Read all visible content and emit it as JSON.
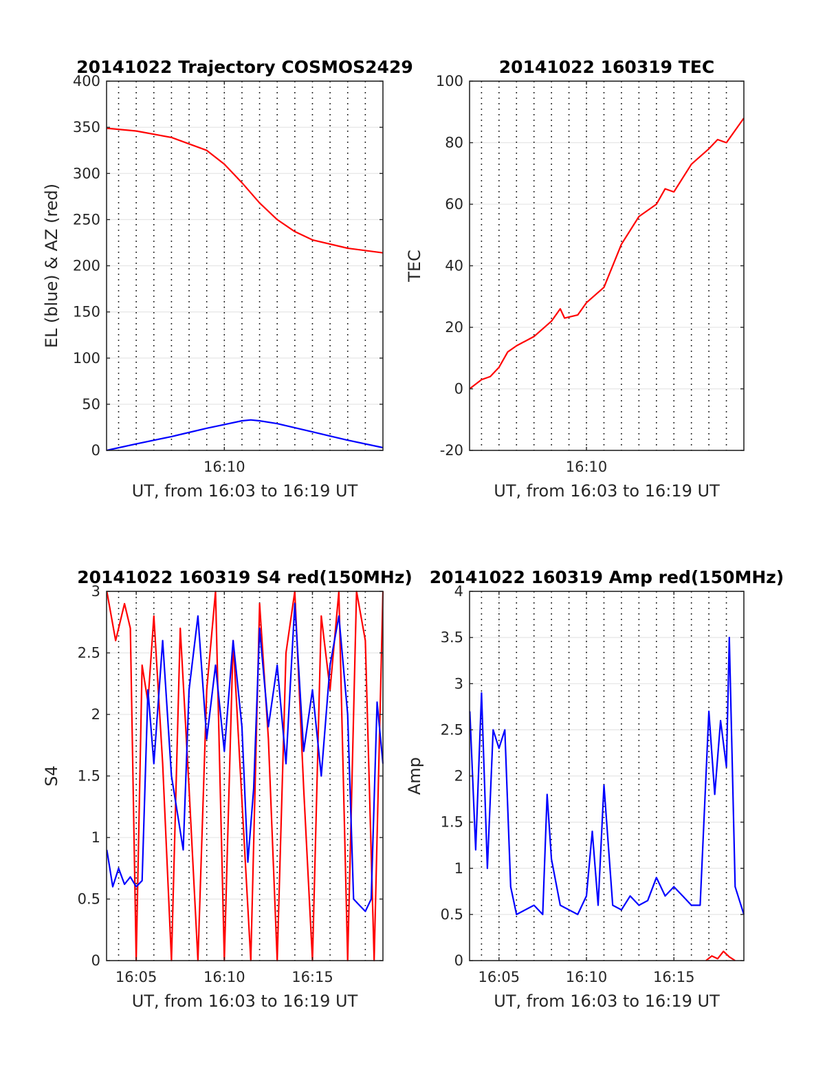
{
  "figure": {
    "background": "#ffffff"
  },
  "chart_data": [
    {
      "type": "line",
      "title": "20141022 Trajectory COSMOS2429",
      "xlabel": "UT, from 16:03 to 16:19 UT",
      "ylabel": "EL (blue) & AZ (red)",
      "xlim": [
        "16:03:19",
        "16:19:00"
      ],
      "ylim": [
        0,
        400
      ],
      "xticks": [
        {
          "value": "16:10",
          "label": "16:10"
        }
      ],
      "yticks": [
        0,
        50,
        100,
        150,
        200,
        250,
        300,
        350,
        400
      ],
      "ytick_labels": [
        "0",
        "50",
        "100",
        "150",
        "200",
        "250",
        "300",
        "350",
        "400"
      ],
      "grid": true,
      "dotted_time_grid_minutes": [
        4,
        5,
        6,
        7,
        8,
        9,
        10,
        11,
        12,
        13,
        14,
        15,
        16,
        17,
        18
      ],
      "series": [
        {
          "color": "#ff0000",
          "x": [
            "16:03:19",
            "16:05:00",
            "16:07:00",
            "16:09:00",
            "16:10:00",
            "16:11:00",
            "16:12:00",
            "16:13:00",
            "16:14:00",
            "16:15:00",
            "16:17:00",
            "16:19:00"
          ],
          "values": [
            349,
            346,
            339,
            325,
            310,
            290,
            268,
            250,
            237,
            228,
            219,
            214
          ]
        },
        {
          "color": "#0000ff",
          "x": [
            "16:03:19",
            "16:05:00",
            "16:07:00",
            "16:09:00",
            "16:10:00",
            "16:11:00",
            "16:11:30",
            "16:12:00",
            "16:13:00",
            "16:15:00",
            "16:17:00",
            "16:19:00"
          ],
          "values": [
            0,
            7,
            15,
            24,
            28,
            32,
            33,
            32,
            29,
            20,
            11,
            3
          ]
        }
      ]
    },
    {
      "type": "line",
      "title": "20141022 160319 TEC",
      "xlabel": "UT, from 16:03 to 16:19 UT",
      "ylabel": "TEC",
      "xlim": [
        "16:03:19",
        "16:19:00"
      ],
      "ylim": [
        -20,
        100
      ],
      "xticks": [
        {
          "value": "16:10",
          "label": "16:10"
        }
      ],
      "yticks": [
        -20,
        0,
        20,
        40,
        60,
        80,
        100
      ],
      "ytick_labels": [
        "-20",
        "0",
        "20",
        "40",
        "60",
        "80",
        "100"
      ],
      "grid": true,
      "dotted_time_grid_minutes": [
        4,
        5,
        6,
        7,
        8,
        9,
        10,
        11,
        12,
        13,
        14,
        15,
        16,
        17,
        18
      ],
      "series": [
        {
          "color": "#ff0000",
          "x": [
            "16:03:19",
            "16:04:00",
            "16:04:30",
            "16:05:00",
            "16:05:30",
            "16:06:00",
            "16:07:00",
            "16:08:00",
            "16:08:30",
            "16:08:45",
            "16:09:30",
            "16:10:00",
            "16:11:00",
            "16:12:00",
            "16:13:00",
            "16:14:00",
            "16:14:30",
            "16:15:00",
            "16:16:00",
            "16:17:00",
            "16:17:30",
            "16:18:00",
            "16:18:30",
            "16:19:00"
          ],
          "values": [
            0,
            3,
            4,
            7,
            12,
            14,
            17,
            22,
            26,
            23,
            24,
            28,
            33,
            47,
            56,
            60,
            65,
            64,
            73,
            78,
            81,
            80,
            84,
            88
          ]
        }
      ]
    },
    {
      "type": "line",
      "title": "20141022 160319 S4 red(150MHz)",
      "xlabel": "UT, from 16:03 to 16:19 UT",
      "ylabel": "S4",
      "xlim": [
        "16:03:19",
        "16:19:00"
      ],
      "ylim": [
        0,
        3
      ],
      "xticks": [
        {
          "value": "16:05",
          "label": "16:05"
        },
        {
          "value": "16:10",
          "label": "16:10"
        },
        {
          "value": "16:15",
          "label": "16:15"
        }
      ],
      "yticks": [
        0,
        0.5,
        1,
        1.5,
        2,
        2.5,
        3
      ],
      "ytick_labels": [
        "0",
        "0.5",
        "1",
        "1.5",
        "2",
        "2.5",
        "3"
      ],
      "grid": true,
      "dotted_time_grid_minutes": [
        4,
        5,
        6,
        7,
        8,
        9,
        10,
        11,
        12,
        13,
        14,
        15,
        16,
        17,
        18
      ],
      "series": [
        {
          "color": "#ff0000",
          "x": [
            "16:03:20",
            "16:03:50",
            "16:04:20",
            "16:04:40",
            "16:05:00",
            "16:05:20",
            "16:05:40",
            "16:06:00",
            "16:06:30",
            "16:07:00",
            "16:07:30",
            "16:08:00",
            "16:08:30",
            "16:09:00",
            "16:09:30",
            "16:10:00",
            "16:10:30",
            "16:11:00",
            "16:11:30",
            "16:12:00",
            "16:12:30",
            "16:13:00",
            "16:13:30",
            "16:14:00",
            "16:14:30",
            "16:15:00",
            "16:15:30",
            "16:16:00",
            "16:16:30",
            "16:17:00",
            "16:17:30",
            "16:18:00",
            "16:18:30",
            "16:19:00"
          ],
          "values": [
            3.0,
            2.6,
            2.9,
            2.7,
            0.0,
            2.4,
            2.1,
            2.8,
            1.6,
            0.0,
            2.7,
            1.4,
            0.0,
            2.2,
            3.0,
            0.0,
            2.6,
            1.3,
            0.0,
            2.9,
            1.8,
            0.0,
            2.5,
            3.0,
            1.4,
            0.0,
            2.8,
            2.2,
            3.0,
            0.0,
            3.0,
            2.6,
            0.0,
            3.0
          ]
        },
        {
          "color": "#0000ff",
          "x": [
            "16:03:20",
            "16:03:40",
            "16:04:00",
            "16:04:20",
            "16:04:40",
            "16:05:00",
            "16:05:20",
            "16:05:40",
            "16:06:00",
            "16:06:30",
            "16:07:00",
            "16:07:20",
            "16:07:40",
            "16:08:00",
            "16:08:30",
            "16:09:00",
            "16:09:30",
            "16:10:00",
            "16:10:30",
            "16:11:00",
            "16:11:20",
            "16:11:40",
            "16:12:00",
            "16:12:30",
            "16:13:00",
            "16:13:30",
            "16:14:00",
            "16:14:30",
            "16:15:00",
            "16:15:30",
            "16:16:00",
            "16:16:30",
            "16:17:00",
            "16:17:20",
            "16:17:40",
            "16:18:00",
            "16:18:20",
            "16:18:40",
            "16:19:00"
          ],
          "values": [
            0.9,
            0.6,
            0.75,
            0.62,
            0.68,
            0.6,
            0.65,
            2.2,
            1.6,
            2.6,
            1.5,
            1.2,
            0.9,
            2.2,
            2.8,
            1.8,
            2.4,
            1.7,
            2.6,
            1.9,
            0.8,
            1.4,
            2.7,
            1.9,
            2.4,
            1.6,
            2.9,
            1.7,
            2.2,
            1.5,
            2.4,
            2.8,
            2.0,
            0.5,
            0.45,
            0.4,
            0.5,
            2.1,
            1.6
          ]
        }
      ]
    },
    {
      "type": "line",
      "title": "20141022 160319 Amp red(150MHz)",
      "xlabel": "UT, from 16:03 to 16:19 UT",
      "ylabel": "Amp",
      "xlim": [
        "16:03:19",
        "16:19:00"
      ],
      "ylim": [
        0,
        4
      ],
      "xticks": [
        {
          "value": "16:05",
          "label": "16:05"
        },
        {
          "value": "16:10",
          "label": "16:10"
        },
        {
          "value": "16:15",
          "label": "16:15"
        }
      ],
      "yticks": [
        0,
        0.5,
        1,
        1.5,
        2,
        2.5,
        3,
        3.5,
        4
      ],
      "ytick_labels": [
        "0",
        "0.5",
        "1",
        "1.5",
        "2",
        "2.5",
        "3",
        "3.5",
        "4"
      ],
      "grid": true,
      "dotted_time_grid_minutes": [
        4,
        5,
        6,
        7,
        8,
        9,
        10,
        11,
        12,
        13,
        14,
        15,
        16,
        17,
        18
      ],
      "series": [
        {
          "color": "#ff0000",
          "x": [
            "16:16:50",
            "16:17:10",
            "16:17:30",
            "16:17:50",
            "16:18:10",
            "16:18:30"
          ],
          "values": [
            0.0,
            0.05,
            0.02,
            0.1,
            0.04,
            0.0
          ]
        },
        {
          "color": "#0000ff",
          "x": [
            "16:03:20",
            "16:03:40",
            "16:04:00",
            "16:04:20",
            "16:04:40",
            "16:05:00",
            "16:05:20",
            "16:05:40",
            "16:06:00",
            "16:06:30",
            "16:07:00",
            "16:07:30",
            "16:07:45",
            "16:08:00",
            "16:08:30",
            "16:09:00",
            "16:09:30",
            "16:10:00",
            "16:10:20",
            "16:10:40",
            "16:11:00",
            "16:11:30",
            "16:12:00",
            "16:12:30",
            "16:13:00",
            "16:13:30",
            "16:14:00",
            "16:14:30",
            "16:15:00",
            "16:15:30",
            "16:16:00",
            "16:16:30",
            "16:17:00",
            "16:17:20",
            "16:17:40",
            "16:18:00",
            "16:18:10",
            "16:18:30",
            "16:19:00"
          ],
          "values": [
            2.7,
            1.2,
            2.9,
            1.0,
            2.5,
            2.3,
            2.5,
            0.8,
            0.5,
            0.55,
            0.6,
            0.5,
            1.8,
            1.1,
            0.6,
            0.55,
            0.5,
            0.7,
            1.4,
            0.6,
            1.9,
            0.6,
            0.55,
            0.7,
            0.6,
            0.65,
            0.9,
            0.7,
            0.8,
            0.7,
            0.6,
            0.6,
            2.7,
            1.8,
            2.6,
            2.1,
            3.5,
            0.8,
            0.5
          ]
        }
      ]
    }
  ]
}
